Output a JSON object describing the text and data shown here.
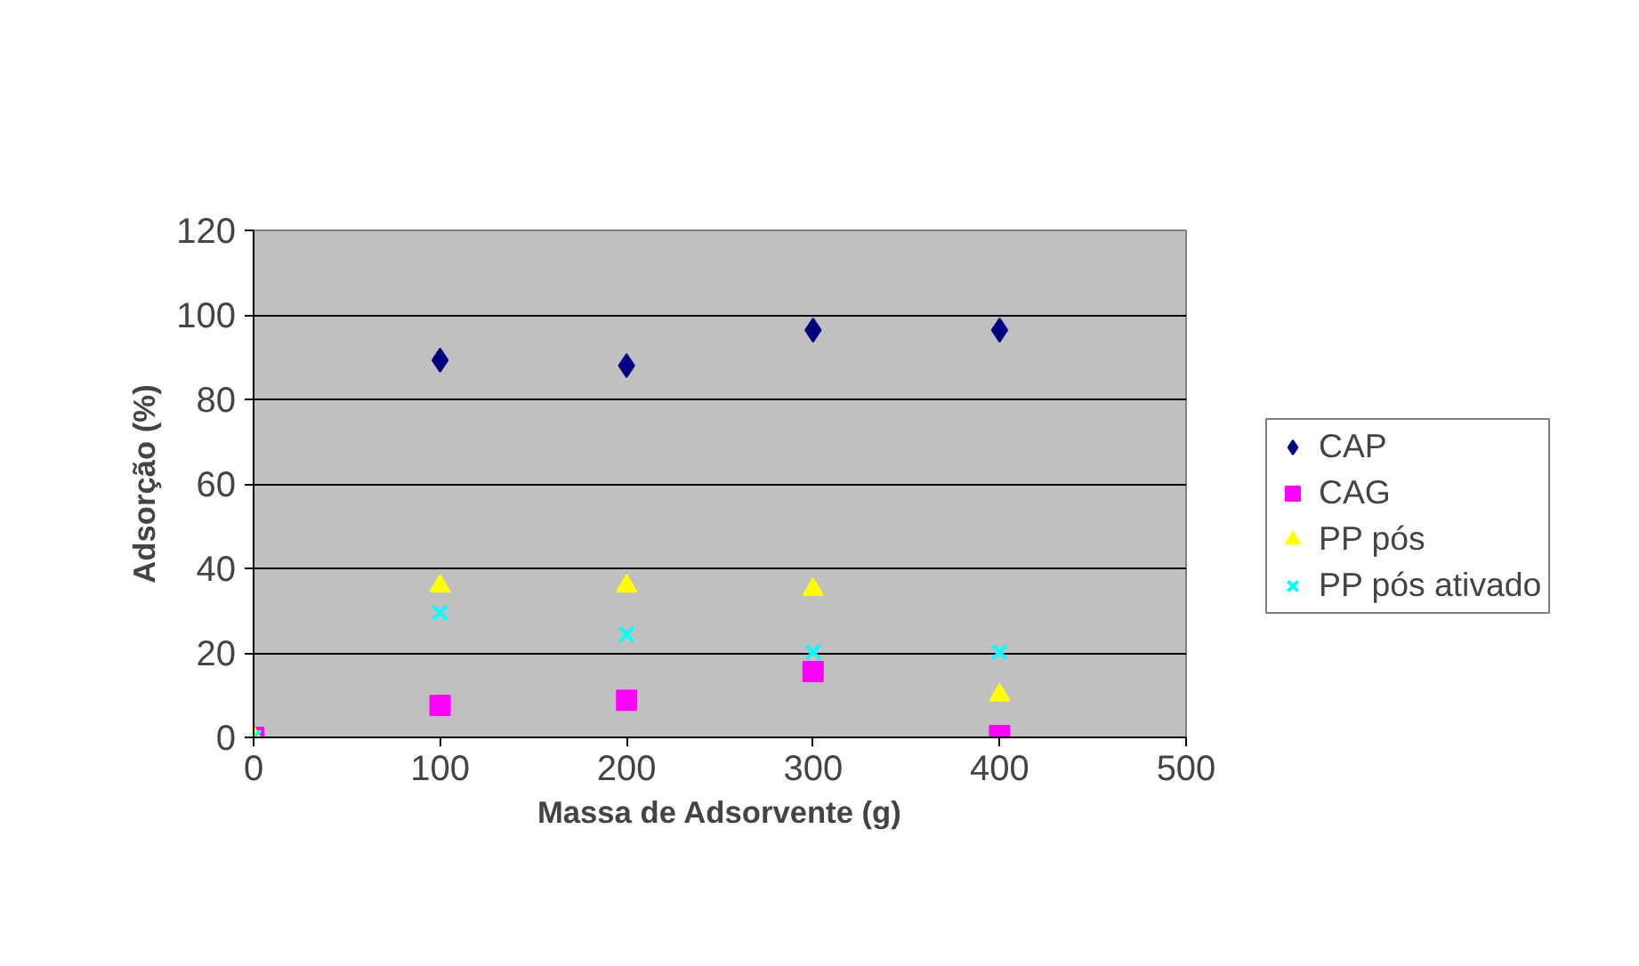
{
  "chart_data": {
    "type": "scatter",
    "xlabel": "Massa de Adsorvente (g)",
    "ylabel": "Adsorção (%)",
    "x": [
      0,
      100,
      200,
      300,
      400
    ],
    "series": [
      {
        "name": "CAP",
        "color": "#000080",
        "marker": "diamond",
        "values": [
          null,
          89.3,
          88,
          96.4,
          96.4
        ]
      },
      {
        "name": "CAG",
        "color": "#ff00ff",
        "marker": "square",
        "values": [
          0,
          7.6,
          8.8,
          15.6,
          0.4
        ]
      },
      {
        "name": "PP pós",
        "color": "#ffff00",
        "marker": "triangle",
        "values": [
          0,
          35.8,
          35.8,
          35,
          10
        ]
      },
      {
        "name": "PP pós ativado",
        "color": "#00ffff",
        "marker": "x",
        "values": [
          0,
          29.5,
          24.4,
          20.2,
          20.2
        ]
      }
    ],
    "xlim": [
      0,
      500
    ],
    "xticks": [
      0,
      100,
      200,
      300,
      400,
      500
    ],
    "ylim": [
      0,
      120
    ],
    "yticks": [
      0,
      20,
      40,
      60,
      80,
      100,
      120
    ],
    "grid": "y",
    "legend": "right"
  }
}
